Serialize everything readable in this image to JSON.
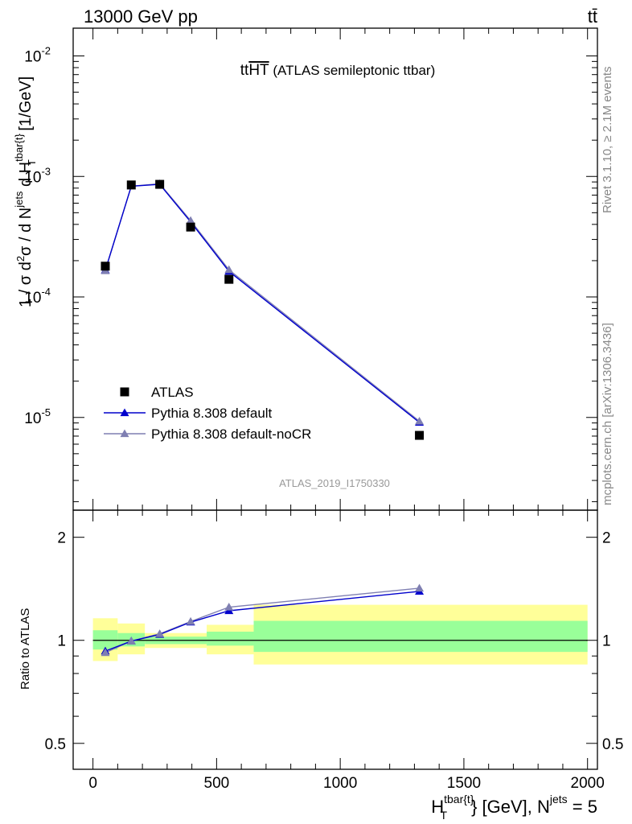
{
  "header": {
    "energy_label": "13000 GeV pp",
    "process_label": "tt̄"
  },
  "side_labels": {
    "rivet": "Rivet 3.1.10, ≥ 2.1M events",
    "mcplots": "mcplots.cern.ch [arXiv:1306.3436]"
  },
  "colors": {
    "data": "#000000",
    "default": "#0000cc",
    "nocr": "#7f7fb2",
    "band_outer": "#ffff99",
    "band_inner": "#99ff99"
  },
  "chart_data": [
    {
      "type": "scatter",
      "panel": "main",
      "title": "ttHT (ATLAS semileptonic ttbar)",
      "title_main": "tt",
      "title_overline": "HT",
      "title_rest": " (ATLAS semileptonic ttbar)",
      "analysis_id": "ATLAS_2019_I1750330",
      "ylabel": "1 / σ d²σ / d N^jets d H_T^tbar{t} [1/GeV]",
      "yscale": "log",
      "ylim": [
        1.7e-06,
        0.017
      ],
      "xlim": [
        -80,
        2040
      ],
      "y_tick_labels": [
        "10^-5",
        "10^-4",
        "10^-3",
        "10^-2"
      ],
      "legend_position": "lower-left",
      "series": [
        {
          "name": "ATLAS",
          "marker": "square",
          "x": [
            50,
            155,
            270,
            395,
            550,
            1320
          ],
          "y": [
            0.00018,
            0.00085,
            0.00086,
            0.00038,
            0.00014,
            7.1e-06
          ]
        },
        {
          "name": "Pythia 8.308 default",
          "marker": "triangle",
          "x": [
            50,
            155,
            270,
            395,
            550,
            1320
          ],
          "y": [
            0.000167,
            0.00083,
            0.00086,
            0.00042,
            0.000163,
            9.1e-06
          ]
        },
        {
          "name": "Pythia 8.308 default-noCR",
          "marker": "triangle",
          "x": [
            50,
            155,
            270,
            395,
            550,
            1320
          ],
          "y": [
            0.000165,
            0.00083,
            0.00087,
            0.00043,
            0.000168,
            9.3e-06
          ]
        }
      ]
    },
    {
      "type": "line",
      "panel": "ratio",
      "ylabel": "Ratio to ATLAS",
      "xlabel": "H_T^tbar{t} [GeV], N^jets = 5",
      "yscale": "log",
      "ylim": [
        0.42,
        2.4
      ],
      "xlim": [
        -80,
        2040
      ],
      "x_tick_labels": [
        "0",
        "500",
        "1000",
        "1500",
        "2000"
      ],
      "y_tick_labels": [
        "0.5",
        "1",
        "2"
      ],
      "uncertainty_bands": [
        {
          "x": [
            0,
            100
          ],
          "outer": [
            0.87,
            1.16
          ],
          "inner": [
            0.94,
            1.07
          ]
        },
        {
          "x": [
            100,
            210
          ],
          "outer": [
            0.91,
            1.12
          ],
          "inner": [
            0.96,
            1.05
          ]
        },
        {
          "x": [
            210,
            460
          ],
          "outer": [
            0.95,
            1.05
          ],
          "inner": [
            0.975,
            1.025
          ]
        },
        {
          "x": [
            460,
            650
          ],
          "outer": [
            0.91,
            1.11
          ],
          "inner": [
            0.965,
            1.06
          ]
        },
        {
          "x": [
            650,
            2000
          ],
          "outer": [
            0.85,
            1.27
          ],
          "inner": [
            0.925,
            1.14
          ]
        }
      ],
      "series": [
        {
          "name": "Pythia 8.308 default",
          "x": [
            50,
            155,
            270,
            395,
            550,
            1320
          ],
          "y": [
            0.93,
            0.995,
            1.04,
            1.13,
            1.22,
            1.39
          ]
        },
        {
          "name": "Pythia 8.308 default-noCR",
          "x": [
            50,
            155,
            270,
            395,
            550,
            1320
          ],
          "y": [
            0.92,
            0.995,
            1.045,
            1.135,
            1.25,
            1.42
          ]
        }
      ]
    }
  ]
}
